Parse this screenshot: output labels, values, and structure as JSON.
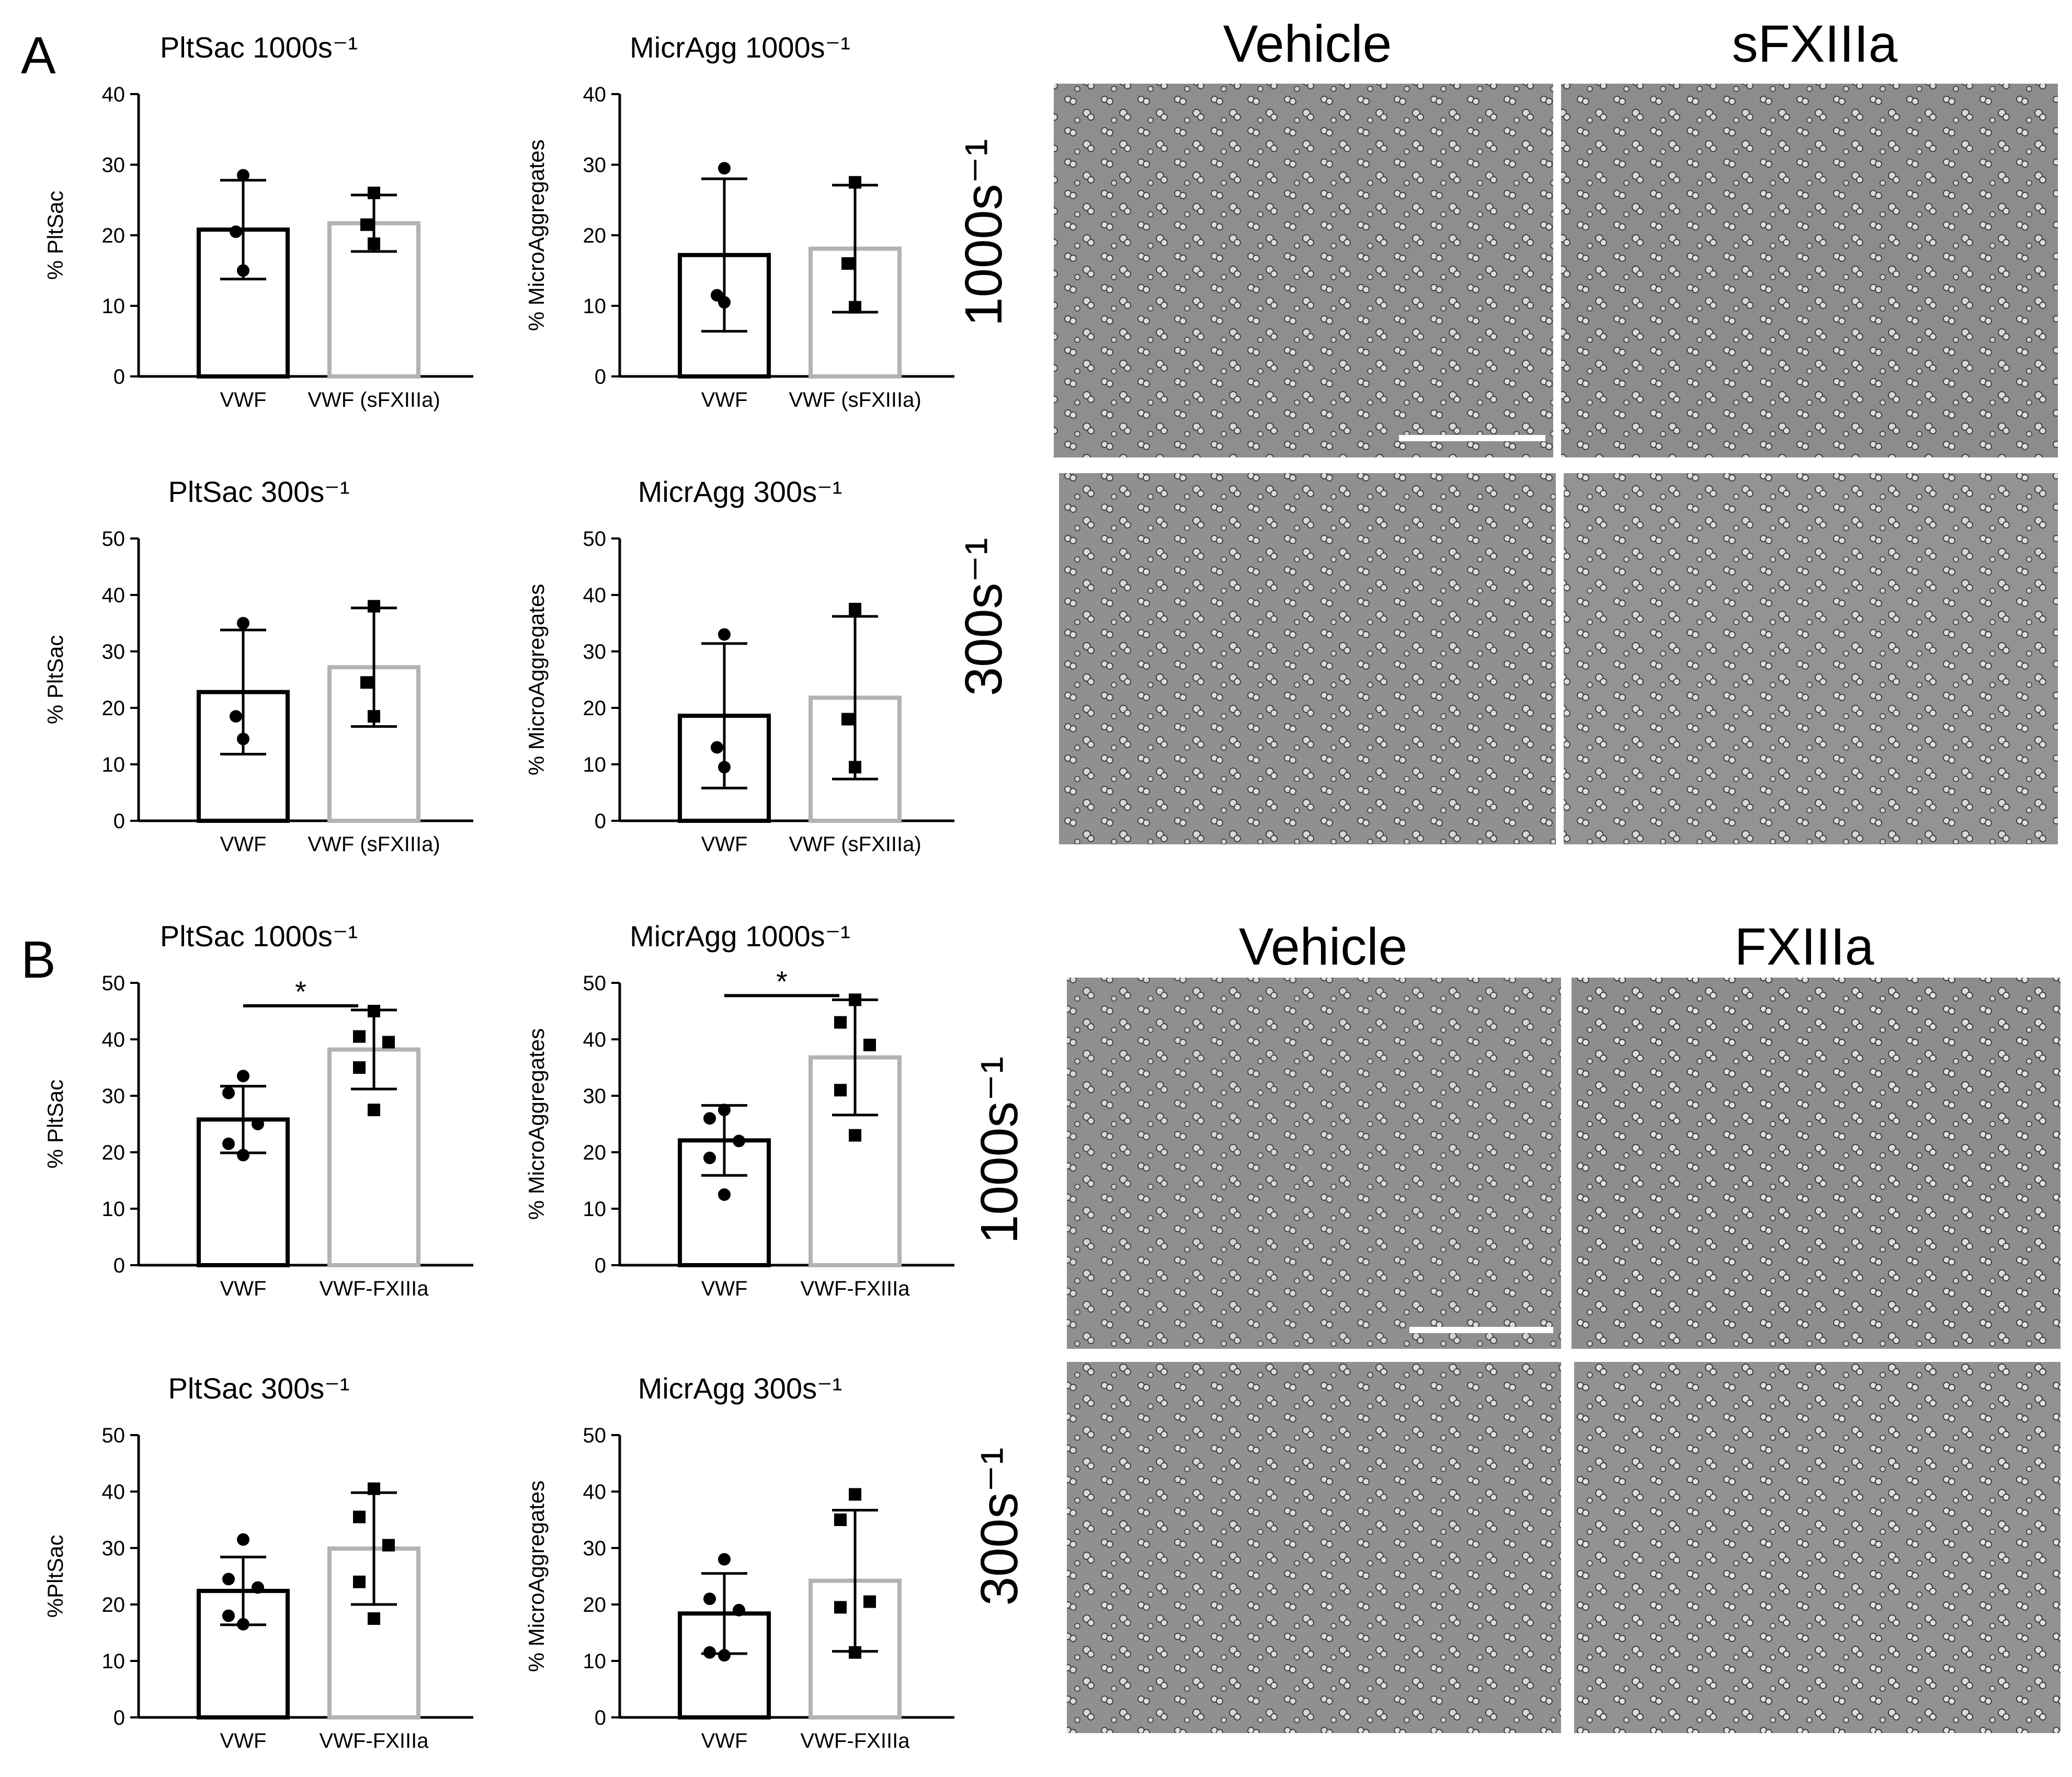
{
  "panel_labels": [
    "A",
    "B"
  ],
  "micrographs": {
    "A": {
      "columns": [
        "Vehicle",
        "sFXIIIa"
      ],
      "rows": [
        "1000s⁻¹",
        "300s⁻¹"
      ],
      "scale_bar": true
    },
    "B": {
      "columns": [
        "Vehicle",
        "FXIIIa"
      ],
      "rows": [
        "1000s⁻¹",
        "300s⁻¹"
      ],
      "scale_bar": true
    }
  },
  "colors": {
    "bar1": "#000000",
    "bar2": "#b3b3b3",
    "micrograph_bg": "#8e8e8e"
  },
  "chart_data": [
    {
      "type": "bar",
      "panel": "A",
      "title": "PltSac 1000s⁻¹",
      "ylabel": "% PltSac",
      "xlabel": "",
      "ylim": [
        0,
        40
      ],
      "yticks": [
        0,
        10,
        20,
        30,
        40
      ],
      "categories": [
        "VWF",
        "VWF (sFXIIIa)"
      ],
      "values": [
        20.8,
        21.7
      ],
      "errors": [
        7.0,
        4.0
      ],
      "points": [
        [
          28.5,
          20.5,
          15.0
        ],
        [
          26.0,
          21.5,
          18.8
        ]
      ],
      "markers": [
        "circle",
        "square"
      ],
      "significance": null
    },
    {
      "type": "bar",
      "panel": "A",
      "title": "MicrAgg 1000s⁻¹",
      "ylabel": "% MicroAggregates",
      "xlabel": "",
      "ylim": [
        0,
        40
      ],
      "yticks": [
        0,
        10,
        20,
        30,
        40
      ],
      "categories": [
        "VWF",
        "VWF (sFXIIIa)"
      ],
      "values": [
        17.2,
        18.1
      ],
      "errors": [
        10.8,
        9.0
      ],
      "points": [
        [
          29.5,
          11.5,
          10.5
        ],
        [
          27.5,
          16.0,
          9.8
        ]
      ],
      "markers": [
        "circle",
        "square"
      ],
      "significance": null
    },
    {
      "type": "bar",
      "panel": "A",
      "title": "PltSac 300s⁻¹",
      "ylabel": "% PltSac",
      "xlabel": "",
      "ylim": [
        0,
        50
      ],
      "yticks": [
        0,
        10,
        20,
        30,
        40,
        50
      ],
      "categories": [
        "VWF",
        "VWF (sFXIIIa)"
      ],
      "values": [
        22.8,
        27.2
      ],
      "errors": [
        11.0,
        10.5
      ],
      "points": [
        [
          35.0,
          18.5,
          14.5
        ],
        [
          38.0,
          24.5,
          18.5
        ]
      ],
      "markers": [
        "circle",
        "square"
      ],
      "significance": null
    },
    {
      "type": "bar",
      "panel": "A",
      "title": "MicrAgg 300s⁻¹",
      "ylabel": "% MicroAggregates",
      "xlabel": "",
      "ylim": [
        0,
        50
      ],
      "yticks": [
        0,
        10,
        20,
        30,
        40,
        50
      ],
      "categories": [
        "VWF",
        "VWF (sFXIIIa)"
      ],
      "values": [
        18.6,
        21.8
      ],
      "errors": [
        12.8,
        14.4
      ],
      "points": [
        [
          33.0,
          13.0,
          9.5
        ],
        [
          37.5,
          18.0,
          9.5
        ]
      ],
      "markers": [
        "circle",
        "square"
      ],
      "significance": null
    },
    {
      "type": "bar",
      "panel": "B",
      "title": "PltSac 1000s⁻¹",
      "ylabel": "% PltSac",
      "xlabel": "",
      "ylim": [
        0,
        50
      ],
      "yticks": [
        0,
        10,
        20,
        30,
        40,
        50
      ],
      "categories": [
        "VWF",
        "VWF-FXIIIa"
      ],
      "values": [
        25.8,
        38.2
      ],
      "errors": [
        5.9,
        7.0
      ],
      "points": [
        [
          33.5,
          30.5,
          25.0,
          21.5,
          19.5
        ],
        [
          45.0,
          40.5,
          39.5,
          35.0,
          27.5
        ]
      ],
      "markers": [
        "circle",
        "square"
      ],
      "significance": "*"
    },
    {
      "type": "bar",
      "panel": "B",
      "title": "MicrAgg 1000s⁻¹",
      "ylabel": "% MicroAggregates",
      "xlabel": "",
      "ylim": [
        0,
        50
      ],
      "yticks": [
        0,
        10,
        20,
        30,
        40,
        50
      ],
      "categories": [
        "VWF",
        "VWF-FXIIIa"
      ],
      "values": [
        22.1,
        36.8
      ],
      "errors": [
        6.2,
        10.2
      ],
      "points": [
        [
          27.5,
          26.0,
          22.0,
          19.0,
          12.5
        ],
        [
          47.0,
          43.0,
          39.0,
          31.0,
          23.0
        ]
      ],
      "markers": [
        "circle",
        "square"
      ],
      "significance": "*"
    },
    {
      "type": "bar",
      "panel": "B",
      "title": "PltSac 300s⁻¹",
      "ylabel": "%PltSac",
      "xlabel": "",
      "ylim": [
        0,
        50
      ],
      "yticks": [
        0,
        10,
        20,
        30,
        40,
        50
      ],
      "categories": [
        "VWF",
        "VWF-FXIIIa"
      ],
      "values": [
        22.4,
        29.9
      ],
      "errors": [
        6.0,
        9.9
      ],
      "points": [
        [
          31.5,
          24.5,
          23.0,
          18.0,
          16.5
        ],
        [
          40.5,
          35.5,
          30.5,
          24.0,
          17.5
        ]
      ],
      "markers": [
        "circle",
        "square"
      ],
      "significance": null
    },
    {
      "type": "bar",
      "panel": "B",
      "title": "MicrAgg 300s⁻¹",
      "ylabel": "% MicroAggregates",
      "xlabel": "",
      "ylim": [
        0,
        50
      ],
      "yticks": [
        0,
        10,
        20,
        30,
        40,
        50
      ],
      "categories": [
        "VWF",
        "VWF-FXIIIa"
      ],
      "values": [
        18.4,
        24.2
      ],
      "errors": [
        7.1,
        12.5
      ],
      "points": [
        [
          28.0,
          21.0,
          19.0,
          11.5,
          11.0
        ],
        [
          39.5,
          35.0,
          20.5,
          19.5,
          11.5
        ]
      ],
      "markers": [
        "circle",
        "square"
      ],
      "significance": null
    }
  ]
}
